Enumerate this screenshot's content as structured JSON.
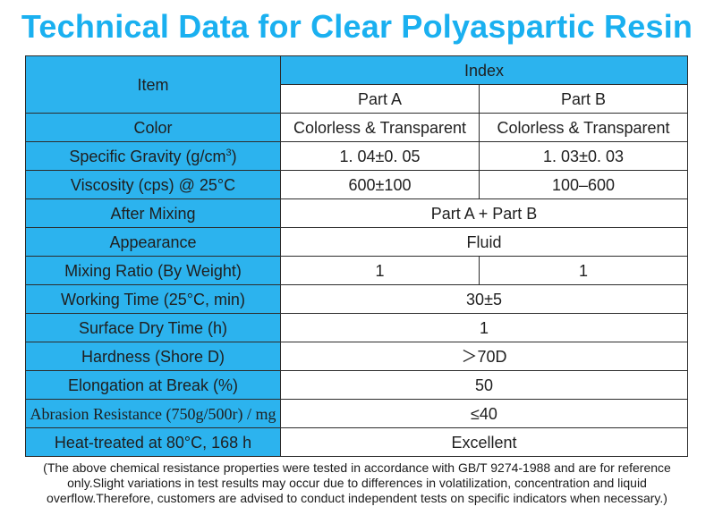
{
  "title": "Technical Data for Clear Polyaspartic Resin",
  "header": {
    "item": "Item",
    "index": "Index",
    "part_a": "Part A",
    "part_b": "Part B"
  },
  "rows": {
    "color": {
      "label": "Color",
      "a": "Colorless & Transparent",
      "b": "Colorless & Transparent"
    },
    "gravity": {
      "label_pre": "Specific Gravity (g/cm",
      "label_sup": "3",
      "label_post": ")",
      "a": "1. 04±0. 05",
      "b": "1. 03±0. 03"
    },
    "viscosity": {
      "label": "Viscosity (cps) @ 25°C",
      "a": "600±100",
      "b": "100–600"
    },
    "after_mixing": {
      "label": "After Mixing",
      "value": "Part A + Part B"
    },
    "appearance": {
      "label": "Appearance",
      "value": "Fluid"
    },
    "mixing_ratio": {
      "label": "Mixing Ratio (By Weight)",
      "a": "1",
      "b": "1"
    },
    "working_time": {
      "label": "Working Time (25°C, min)",
      "value": "30±5"
    },
    "surface_dry": {
      "label": "Surface Dry Time (h)",
      "value": "1"
    },
    "hardness": {
      "label": "Hardness (Shore D)",
      "value": "＞70D"
    },
    "elongation": {
      "label": "Elongation at Break (%)",
      "value": "50"
    },
    "abrasion": {
      "label": "Abrasion Resistance (750g/500r) / mg",
      "value": "≤40"
    },
    "heat_treated": {
      "label": "Heat-treated at 80°C, 168 h",
      "value": "Excellent"
    }
  },
  "note": "(The above chemical resistance properties were tested in accordance with GB/T 9274-1988 and are for reference only.Slight variations in test results may occur due to differences in volatilization, concentration and liquid overflow.Therefore, customers are advised to conduct independent tests on specific indicators when necessary.)",
  "colors": {
    "accent": "#1ab0f0",
    "label_bg": "#2cb3ee",
    "border": "#2c2c2c"
  }
}
